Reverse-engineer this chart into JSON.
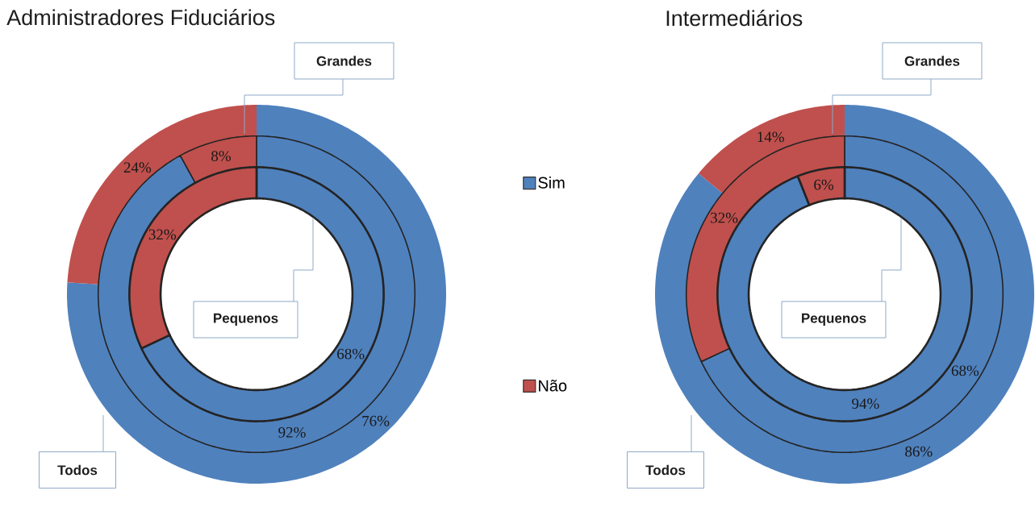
{
  "chart_data": [
    {
      "type": "donut",
      "title": "Administradores Fiduciários",
      "categories": [
        "Sim",
        "Não"
      ],
      "colors": [
        "#4f81bd",
        "#c0504d"
      ],
      "legend": "right",
      "series": [
        {
          "name": "Pequenos",
          "values": [
            68,
            32
          ],
          "value_labels": [
            "68%",
            "32%"
          ]
        },
        {
          "name": "Grandes",
          "values": [
            92,
            8
          ],
          "value_labels": [
            "92%",
            "8%"
          ]
        },
        {
          "name": "Todos",
          "values": [
            76,
            24
          ],
          "value_labels": [
            "76%",
            "24%"
          ]
        }
      ]
    },
    {
      "type": "donut",
      "title": "Intermediários",
      "colors": [
        "#4f81bd",
        "#c0504d"
      ],
      "series": [
        {
          "name": "Pequenos",
          "values": [
            94,
            6
          ],
          "value_labels": [
            "94%",
            "6%"
          ]
        },
        {
          "name": "Grandes",
          "values": [
            68,
            32
          ],
          "value_labels": [
            "68%",
            "32%"
          ]
        },
        {
          "name": "Todos",
          "values": [
            86,
            14
          ],
          "value_labels": [
            "86%",
            "14%"
          ]
        }
      ]
    }
  ]
}
